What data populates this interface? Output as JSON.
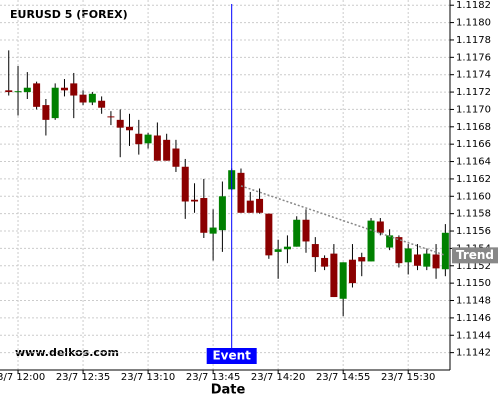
{
  "chart_data": {
    "type": "candlestick",
    "title": "EURUSD 5 (FOREX)",
    "watermark": "www.delkos.com",
    "x_label": "Date",
    "x": [
      715,
      720,
      725,
      730,
      735,
      740,
      745,
      750,
      755,
      760,
      765,
      770,
      775,
      780,
      785,
      790,
      795,
      800,
      805,
      810,
      815,
      820,
      825,
      830,
      835,
      840,
      845,
      850,
      855,
      860,
      865,
      870,
      875,
      880,
      885,
      890,
      895,
      900,
      905,
      910,
      915,
      920,
      925,
      930,
      935,
      940,
      945,
      950
    ],
    "open": [
      1.11722,
      1.11721,
      1.1172,
      1.1173,
      1.11705,
      1.1169,
      1.11725,
      1.1173,
      1.11717,
      1.11708,
      1.1171,
      1.11692,
      1.11688,
      1.1168,
      1.11672,
      1.11661,
      1.1167,
      1.11665,
      1.11655,
      1.11634,
      1.11596,
      1.11598,
      1.11557,
      1.11561,
      1.11608,
      1.11627,
      1.11595,
      1.11597,
      1.1158,
      1.11536,
      1.11539,
      1.11542,
      1.11573,
      1.11545,
      1.11529,
      1.11534,
      1.11482,
      1.11527,
      1.1153,
      1.11525,
      1.11571,
      1.11541,
      1.11553,
      1.11524,
      1.11533,
      1.11519,
      1.11533,
      1.11516
    ],
    "high": [
      1.11768,
      1.1175,
      1.11743,
      1.11732,
      1.11712,
      1.1173,
      1.11735,
      1.11742,
      1.11722,
      1.1172,
      1.11715,
      1.11698,
      1.117,
      1.11695,
      1.11688,
      1.11673,
      1.11685,
      1.11672,
      1.11665,
      1.11643,
      1.11615,
      1.1162,
      1.11585,
      1.11617,
      1.11632,
      1.11632,
      1.11605,
      1.11609,
      1.1158,
      1.1155,
      1.11555,
      1.11577,
      1.11585,
      1.11553,
      1.11532,
      1.11545,
      1.11524,
      1.11545,
      1.11535,
      1.11575,
      1.11575,
      1.11562,
      1.11555,
      1.11545,
      1.11545,
      1.1154,
      1.11545,
      1.11568
    ],
    "low": [
      1.11716,
      1.11693,
      1.11712,
      1.117,
      1.1167,
      1.11688,
      1.11715,
      1.1169,
      1.11705,
      1.11705,
      1.11695,
      1.11682,
      1.11645,
      1.11658,
      1.11648,
      1.11655,
      1.11641,
      1.11641,
      1.11628,
      1.11574,
      1.11581,
      1.11552,
      1.11526,
      1.11536,
      1.11607,
      1.11581,
      1.11581,
      1.1158,
      1.11528,
      1.11505,
      1.11523,
      1.11542,
      1.11535,
      1.11513,
      1.11515,
      1.11484,
      1.11462,
      1.11495,
      1.11508,
      1.11525,
      1.11555,
      1.11538,
      1.11518,
      1.1151,
      1.11515,
      1.11515,
      1.11505,
      1.11508
    ],
    "close": [
      1.1172,
      1.11721,
      1.11725,
      1.11703,
      1.11688,
      1.11725,
      1.11722,
      1.11716,
      1.11708,
      1.11718,
      1.11702,
      1.11691,
      1.11679,
      1.11676,
      1.1166,
      1.11671,
      1.11641,
      1.11641,
      1.11634,
      1.11594,
      1.11594,
      1.11558,
      1.11564,
      1.116,
      1.1163,
      1.11581,
      1.11581,
      1.11581,
      1.11532,
      1.11539,
      1.11542,
      1.11573,
      1.11548,
      1.1153,
      1.11519,
      1.11484,
      1.11524,
      1.115,
      1.11525,
      1.11572,
      1.11558,
      1.11555,
      1.11523,
      1.1154,
      1.1152,
      1.11534,
      1.11517,
      1.11558
    ],
    "up_color": "#008000",
    "down_color": "#8b0000",
    "xlim": [
      710.3,
      952.5
    ],
    "ylim": [
      1.114,
      1.11826
    ],
    "grid": true,
    "xticks": [
      {
        "value": 720,
        "label": "23/7 12:00"
      },
      {
        "value": 755,
        "label": "23/7 12:35"
      },
      {
        "value": 790,
        "label": "23/7 13:10"
      },
      {
        "value": 825,
        "label": "23/7 13:45"
      },
      {
        "value": 860,
        "label": "23/7 14:20"
      },
      {
        "value": 895,
        "label": "23/7 14:55"
      },
      {
        "value": 930,
        "label": "23/7 15:30"
      }
    ],
    "yticks": [
      1.1142,
      1.1144,
      1.1146,
      1.1148,
      {
        "value": 1.115,
        "label": "1.1150"
      },
      1.1152,
      1.1154,
      1.1156,
      1.1158,
      {
        "value": 1.116,
        "label": "1.1160"
      },
      1.1162,
      1.1164,
      1.1166,
      1.1168,
      {
        "value": 1.117,
        "label": "1.1170"
      },
      1.1172,
      1.1174,
      1.1176,
      1.1178,
      {
        "value": 1.118,
        "label": "1.1180"
      },
      1.1182
    ],
    "event": {
      "x": 835,
      "label": "Event",
      "color": "#0000ff"
    },
    "trend": {
      "x": [
        840,
        950
      ],
      "y": [
        1.11612,
        1.11532
      ],
      "label": "Trend",
      "color": "#888888"
    }
  }
}
